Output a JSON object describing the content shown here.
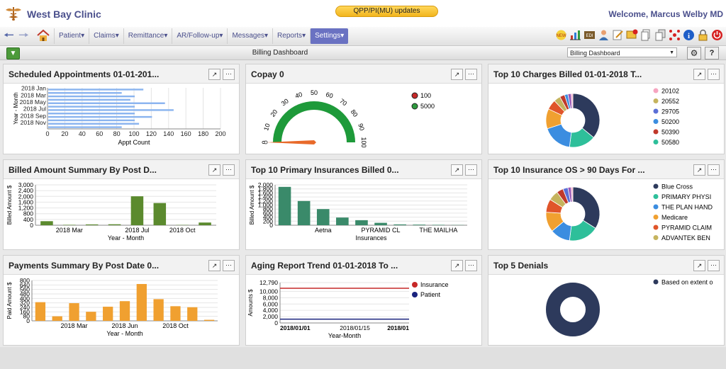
{
  "header": {
    "clinic_name": "West Bay Clinic",
    "qpp_label": "QPP/PI(MU) updates",
    "welcome": "Welcome, Marcus Welby MD"
  },
  "nav": {
    "items": [
      "Patient",
      "Claims",
      "Remittance",
      "AR/Follow-up",
      "Messages",
      "Reports",
      "Settings"
    ],
    "active": "Settings"
  },
  "subbar": {
    "title": "Billing Dashboard",
    "select_value": "Billing Dashboard"
  },
  "panels": [
    {
      "title": "Scheduled Appointments 01-01-201..."
    },
    {
      "title": "Copay 0"
    },
    {
      "title": "Top 10 Charges Billed 01-01-2018 T..."
    },
    {
      "title": "Billed Amount Summary By Post D..."
    },
    {
      "title": "Top 10 Primary Insurances Billed 0..."
    },
    {
      "title": "Top 10 Insurance OS > 90 Days For ..."
    },
    {
      "title": "Payments Summary By Post Date 0..."
    },
    {
      "title": "Aging Report Trend 01-01-2018 To ..."
    },
    {
      "title": "Top 5 Denials"
    }
  ],
  "chart_data": [
    {
      "type": "bar",
      "orientation": "horizontal",
      "panel": 0,
      "categories": [
        "2018 Jan",
        "",
        "2018 Mar",
        "",
        "2018 May",
        "",
        "2018 Jul",
        "",
        "2018 Sep",
        "",
        "2018 Nov",
        ""
      ],
      "values": [
        110,
        85,
        100,
        95,
        135,
        100,
        145,
        100,
        120,
        100,
        105,
        85
      ],
      "xlabel": "Appt Count",
      "ylabel": "Year - Month",
      "xlim": [
        0,
        200
      ],
      "xticks": [
        0,
        20,
        40,
        60,
        80,
        100,
        120,
        140,
        160,
        180,
        200
      ],
      "color": "#8ab4ef"
    },
    {
      "type": "gauge",
      "panel": 1,
      "range": [
        0,
        100
      ],
      "ticks": [
        0,
        10,
        20,
        30,
        40,
        50,
        60,
        70,
        80,
        90,
        100
      ],
      "value": 0,
      "legend": [
        {
          "label": "100",
          "color": "#c62828"
        },
        {
          "label": "5000",
          "color": "#2e9a3e"
        }
      ]
    },
    {
      "type": "pie",
      "panel": 2,
      "donut": true,
      "legend": [
        {
          "label": "20102",
          "color": "#f6a5c0"
        },
        {
          "label": "20552",
          "color": "#c5b45e"
        },
        {
          "label": "29705",
          "color": "#5b6fd6"
        },
        {
          "label": "50200",
          "color": "#3b8de0"
        },
        {
          "label": "50390",
          "color": "#c0392b"
        },
        {
          "label": "50580",
          "color": "#2ebf9a"
        }
      ],
      "slices": [
        {
          "value": 36,
          "color": "#2d3a5c"
        },
        {
          "value": 16,
          "color": "#2ebf9a"
        },
        {
          "value": 18,
          "color": "#3b8de0"
        },
        {
          "value": 12,
          "color": "#f0a030"
        },
        {
          "value": 6,
          "color": "#e0552a"
        },
        {
          "value": 4,
          "color": "#c5b45e"
        },
        {
          "value": 3,
          "color": "#c0392b"
        },
        {
          "value": 2,
          "color": "#3b8de0"
        },
        {
          "value": 2,
          "color": "#9b59b6"
        },
        {
          "value": 1,
          "color": "#f6a5c0"
        }
      ]
    },
    {
      "type": "bar",
      "panel": 3,
      "categories": [
        "",
        "2018 Mar",
        "",
        "",
        "2018 Jul",
        "",
        "2018 Oct",
        ""
      ],
      "values": [
        300,
        30,
        60,
        70,
        2150,
        1650,
        20,
        200
      ],
      "xlabel": "Year - Month",
      "ylabel": "Billed Amount $",
      "ylim": [
        0,
        3000
      ],
      "yticks": [
        "0",
        "400",
        "800",
        "1,200",
        "1,600",
        "2,000",
        "2,400",
        "3,000"
      ],
      "color": "#5b8a2e"
    },
    {
      "type": "bar",
      "panel": 4,
      "categories": [
        "",
        "",
        "Aetna",
        "",
        "",
        "PYRAMID CL",
        "",
        "",
        "THE MAILHA",
        ""
      ],
      "values": [
        1900,
        1200,
        800,
        380,
        250,
        120,
        40,
        30,
        20,
        10
      ],
      "xlabel": "Insurances",
      "ylabel": "Billed Amount $",
      "ylim": [
        0,
        2000
      ],
      "yticks": [
        "0",
        "200",
        "400",
        "600",
        "800",
        "1,000",
        "1,200",
        "1,400",
        "1,600",
        "1,800",
        "2,000"
      ],
      "color": "#3a8a6a"
    },
    {
      "type": "pie",
      "panel": 5,
      "donut": true,
      "legend": [
        {
          "label": "Blue Cross",
          "color": "#2d3a5c"
        },
        {
          "label": "PRIMARY PHYSI",
          "color": "#2ebf9a"
        },
        {
          "label": "THE PLAN HAND",
          "color": "#3b8de0"
        },
        {
          "label": "Medicare",
          "color": "#f0a030"
        },
        {
          "label": "PYRAMID CLAIM",
          "color": "#e0552a"
        },
        {
          "label": "ADVANTEK BEN",
          "color": "#c5b45e"
        }
      ],
      "slices": [
        {
          "value": 34,
          "color": "#2d3a5c"
        },
        {
          "value": 18,
          "color": "#2ebf9a"
        },
        {
          "value": 12,
          "color": "#3b8de0"
        },
        {
          "value": 12,
          "color": "#f0a030"
        },
        {
          "value": 8,
          "color": "#e0552a"
        },
        {
          "value": 6,
          "color": "#c5b45e"
        },
        {
          "value": 4,
          "color": "#c0392b"
        },
        {
          "value": 3,
          "color": "#5b6fd6"
        },
        {
          "value": 2,
          "color": "#9b59b6"
        },
        {
          "value": 1,
          "color": "#f6a5c0"
        }
      ]
    },
    {
      "type": "bar",
      "panel": 6,
      "categories": [
        "",
        "",
        "2018 Mar",
        "",
        "",
        "2018 Jun",
        "",
        "",
        "2018 Oct",
        "",
        ""
      ],
      "values": [
        370,
        90,
        350,
        180,
        280,
        390,
        730,
        430,
        290,
        270,
        20
      ],
      "xlabel": "Year - Month",
      "ylabel": "Paid Amount $",
      "ylim": [
        0,
        800
      ],
      "yticks": [
        "0",
        "80",
        "160",
        "240",
        "320",
        "400",
        "480",
        "560",
        "640",
        "800"
      ],
      "color": "#f0a030"
    },
    {
      "type": "line",
      "panel": 7,
      "x": [
        "2018/01/01",
        "2018/01/15",
        "2018/01"
      ],
      "series": [
        {
          "name": "Insurance",
          "color": "#c62828",
          "values": [
            11000,
            11000,
            11000
          ]
        },
        {
          "name": "Patient",
          "color": "#1a237e",
          "values": [
            1200,
            1200,
            1200
          ]
        }
      ],
      "xlabel": "Year-Month",
      "ylabel": "Amounts $",
      "ylim": [
        0,
        12790
      ],
      "yticks": [
        "0",
        "2,000",
        "4,000",
        "6,000",
        "8,000",
        "10,000",
        "12,790"
      ]
    },
    {
      "type": "pie",
      "panel": 8,
      "donut": true,
      "legend": [
        {
          "label": "Based on extent o",
          "color": "#2d3a5c"
        }
      ],
      "slices": [
        {
          "value": 100,
          "color": "#2d3a5c"
        }
      ]
    }
  ]
}
